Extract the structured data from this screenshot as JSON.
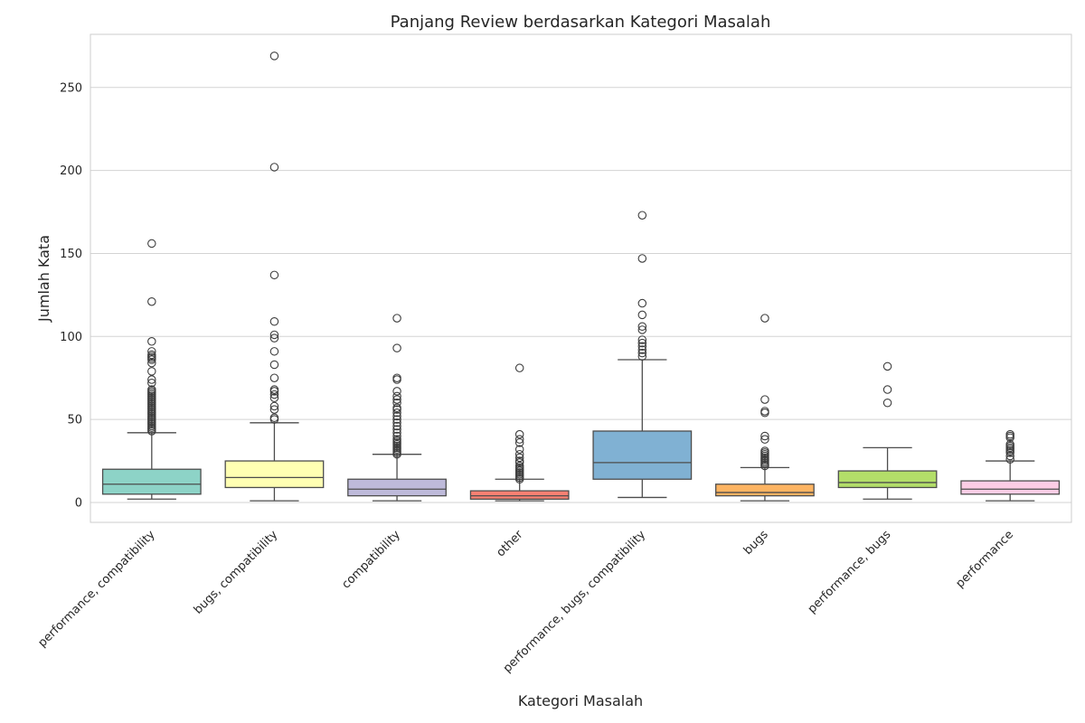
{
  "chart_data": {
    "type": "box",
    "title": "Panjang Review berdasarkan Kategori Masalah",
    "xlabel": "Kategori Masalah",
    "ylabel": "Jumlah Kata",
    "ylim": [
      -12,
      282
    ],
    "yticks": [
      0,
      50,
      100,
      150,
      200,
      250
    ],
    "grid": true,
    "categories": [
      "performance, compatibility",
      "bugs, compatibility",
      "compatibility",
      "other",
      "performance, bugs, compatibility",
      "bugs",
      "performance, bugs",
      "performance"
    ],
    "boxes": [
      {
        "category": "performance, compatibility",
        "color": "#8dd3c7",
        "whislo": 2,
        "q1": 5,
        "med": 11,
        "q3": 20,
        "whishi": 42,
        "fliers": [
          43,
          44,
          45,
          46,
          47,
          48,
          49,
          50,
          51,
          52,
          53,
          54,
          55,
          56,
          57,
          58,
          59,
          60,
          61,
          62,
          63,
          64,
          65,
          66,
          67,
          68,
          72,
          74,
          79,
          84,
          86,
          87,
          88,
          89,
          91,
          97,
          121,
          156
        ]
      },
      {
        "category": "bugs, compatibility",
        "color": "#ffffb3",
        "whislo": 1,
        "q1": 9,
        "med": 15,
        "q3": 25,
        "whishi": 48,
        "fliers": [
          50,
          51,
          56,
          58,
          63,
          65,
          67,
          68,
          75,
          83,
          91,
          99,
          101,
          109,
          137,
          202,
          269
        ]
      },
      {
        "category": "compatibility",
        "color": "#bebada",
        "whislo": 1,
        "q1": 4,
        "med": 8,
        "q3": 14,
        "whishi": 29,
        "fliers": [
          29,
          30,
          31,
          32,
          33,
          34,
          35,
          36,
          37,
          38,
          40,
          42,
          44,
          46,
          48,
          50,
          52,
          54,
          56,
          57,
          60,
          62,
          64,
          67,
          74,
          75,
          93,
          111
        ]
      },
      {
        "category": "other",
        "color": "#fb8072",
        "whislo": 1,
        "q1": 2,
        "med": 4,
        "q3": 7,
        "whishi": 14,
        "fliers": [
          14,
          15,
          16,
          17,
          18,
          19,
          20,
          21,
          22,
          24,
          25,
          27,
          29,
          32,
          36,
          38,
          41,
          81
        ]
      },
      {
        "category": "performance, bugs, compatibility",
        "color": "#80b1d3",
        "whislo": 3,
        "q1": 14,
        "med": 24,
        "q3": 43,
        "whishi": 86,
        "fliers": [
          88,
          90,
          92,
          94,
          96,
          98,
          104,
          106,
          113,
          120,
          147,
          173
        ]
      },
      {
        "category": "bugs",
        "color": "#fdb462",
        "whislo": 1,
        "q1": 4,
        "med": 6,
        "q3": 11,
        "whishi": 21,
        "fliers": [
          22,
          23,
          24,
          25,
          26,
          27,
          28,
          29,
          30,
          31,
          38,
          40,
          54,
          55,
          62,
          111
        ]
      },
      {
        "category": "performance, bugs",
        "color": "#b3de69",
        "whislo": 2,
        "q1": 9,
        "med": 12,
        "q3": 19,
        "whishi": 33,
        "fliers": [
          60,
          68,
          82
        ]
      },
      {
        "category": "performance",
        "color": "#fccde5",
        "whislo": 1,
        "q1": 5,
        "med": 8,
        "q3": 13,
        "whishi": 25,
        "fliers": [
          26,
          28,
          30,
          31,
          32,
          33,
          34,
          35,
          39,
          40,
          41
        ]
      }
    ]
  }
}
